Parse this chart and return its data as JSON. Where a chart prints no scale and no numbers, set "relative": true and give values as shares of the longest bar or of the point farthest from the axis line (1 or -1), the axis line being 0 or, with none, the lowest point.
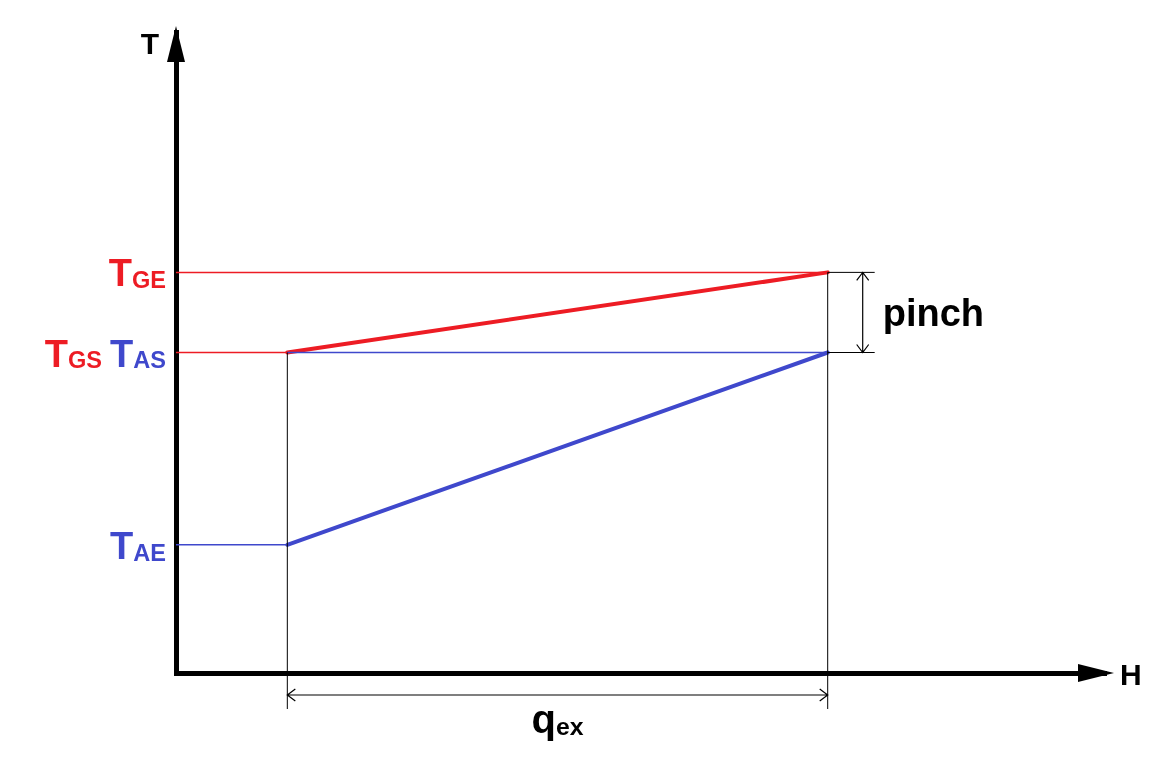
{
  "chart_data": {
    "type": "line",
    "relative": true,
    "categories": [
      null,
      null
    ],
    "series": [
      {
        "color": "#ed1c24",
        "values": [
          0.8,
          1
        ]
      },
      {
        "color": "#3f48cc",
        "values": [
          0.32,
          0.8
        ]
      }
    ],
    "ref_lines": [
      {
        "axis": "y",
        "value": 1,
        "label": "T$_{GE}$",
        "color": "#ed1c24"
      },
      {
        "axis": "y",
        "value": 0.8,
        "label": "T$_{GS}$",
        "color": "#ed1c24"
      },
      {
        "axis": "y",
        "value": 0.8,
        "label": "T$_{AS}$",
        "color": "#3f48cc"
      },
      {
        "axis": "y",
        "value": 0.32,
        "label": "T$_{AE}$",
        "color": "#3f48cc"
      }
    ],
    "annotations": [
      "pinch",
      "q$_{ex}$",
      "T",
      "H"
    ],
    "grid": false,
    "legend": false,
    "marker": "none"
  }
}
